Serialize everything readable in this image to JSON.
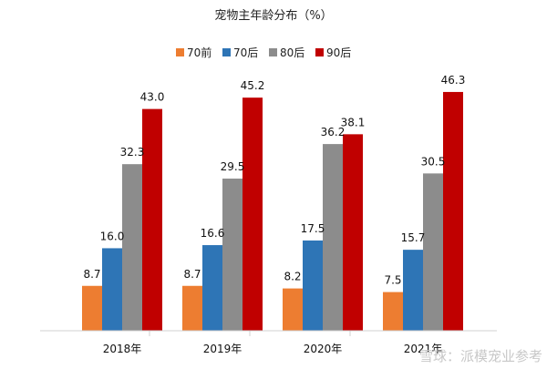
{
  "chart_data": {
    "type": "bar",
    "title": "宠物主年龄分布（%）",
    "categories": [
      "2018年",
      "2019年",
      "2020年",
      "2021年"
    ],
    "series": [
      {
        "name": "70前",
        "color": "#ED7D31",
        "values": [
          8.7,
          8.7,
          8.2,
          7.5
        ]
      },
      {
        "name": "70后",
        "color": "#2E75B6",
        "values": [
          16.0,
          16.6,
          17.5,
          15.7
        ]
      },
      {
        "name": "80后",
        "color": "#8C8C8C",
        "values": [
          32.3,
          29.5,
          36.2,
          30.5
        ]
      },
      {
        "name": "90后",
        "color": "#C00000",
        "values": [
          43.0,
          45.2,
          38.1,
          46.3
        ]
      }
    ],
    "ylim": [
      0,
      50
    ],
    "grid": false,
    "legend_position": "top"
  },
  "watermark": "雪球：派模宠业参考"
}
